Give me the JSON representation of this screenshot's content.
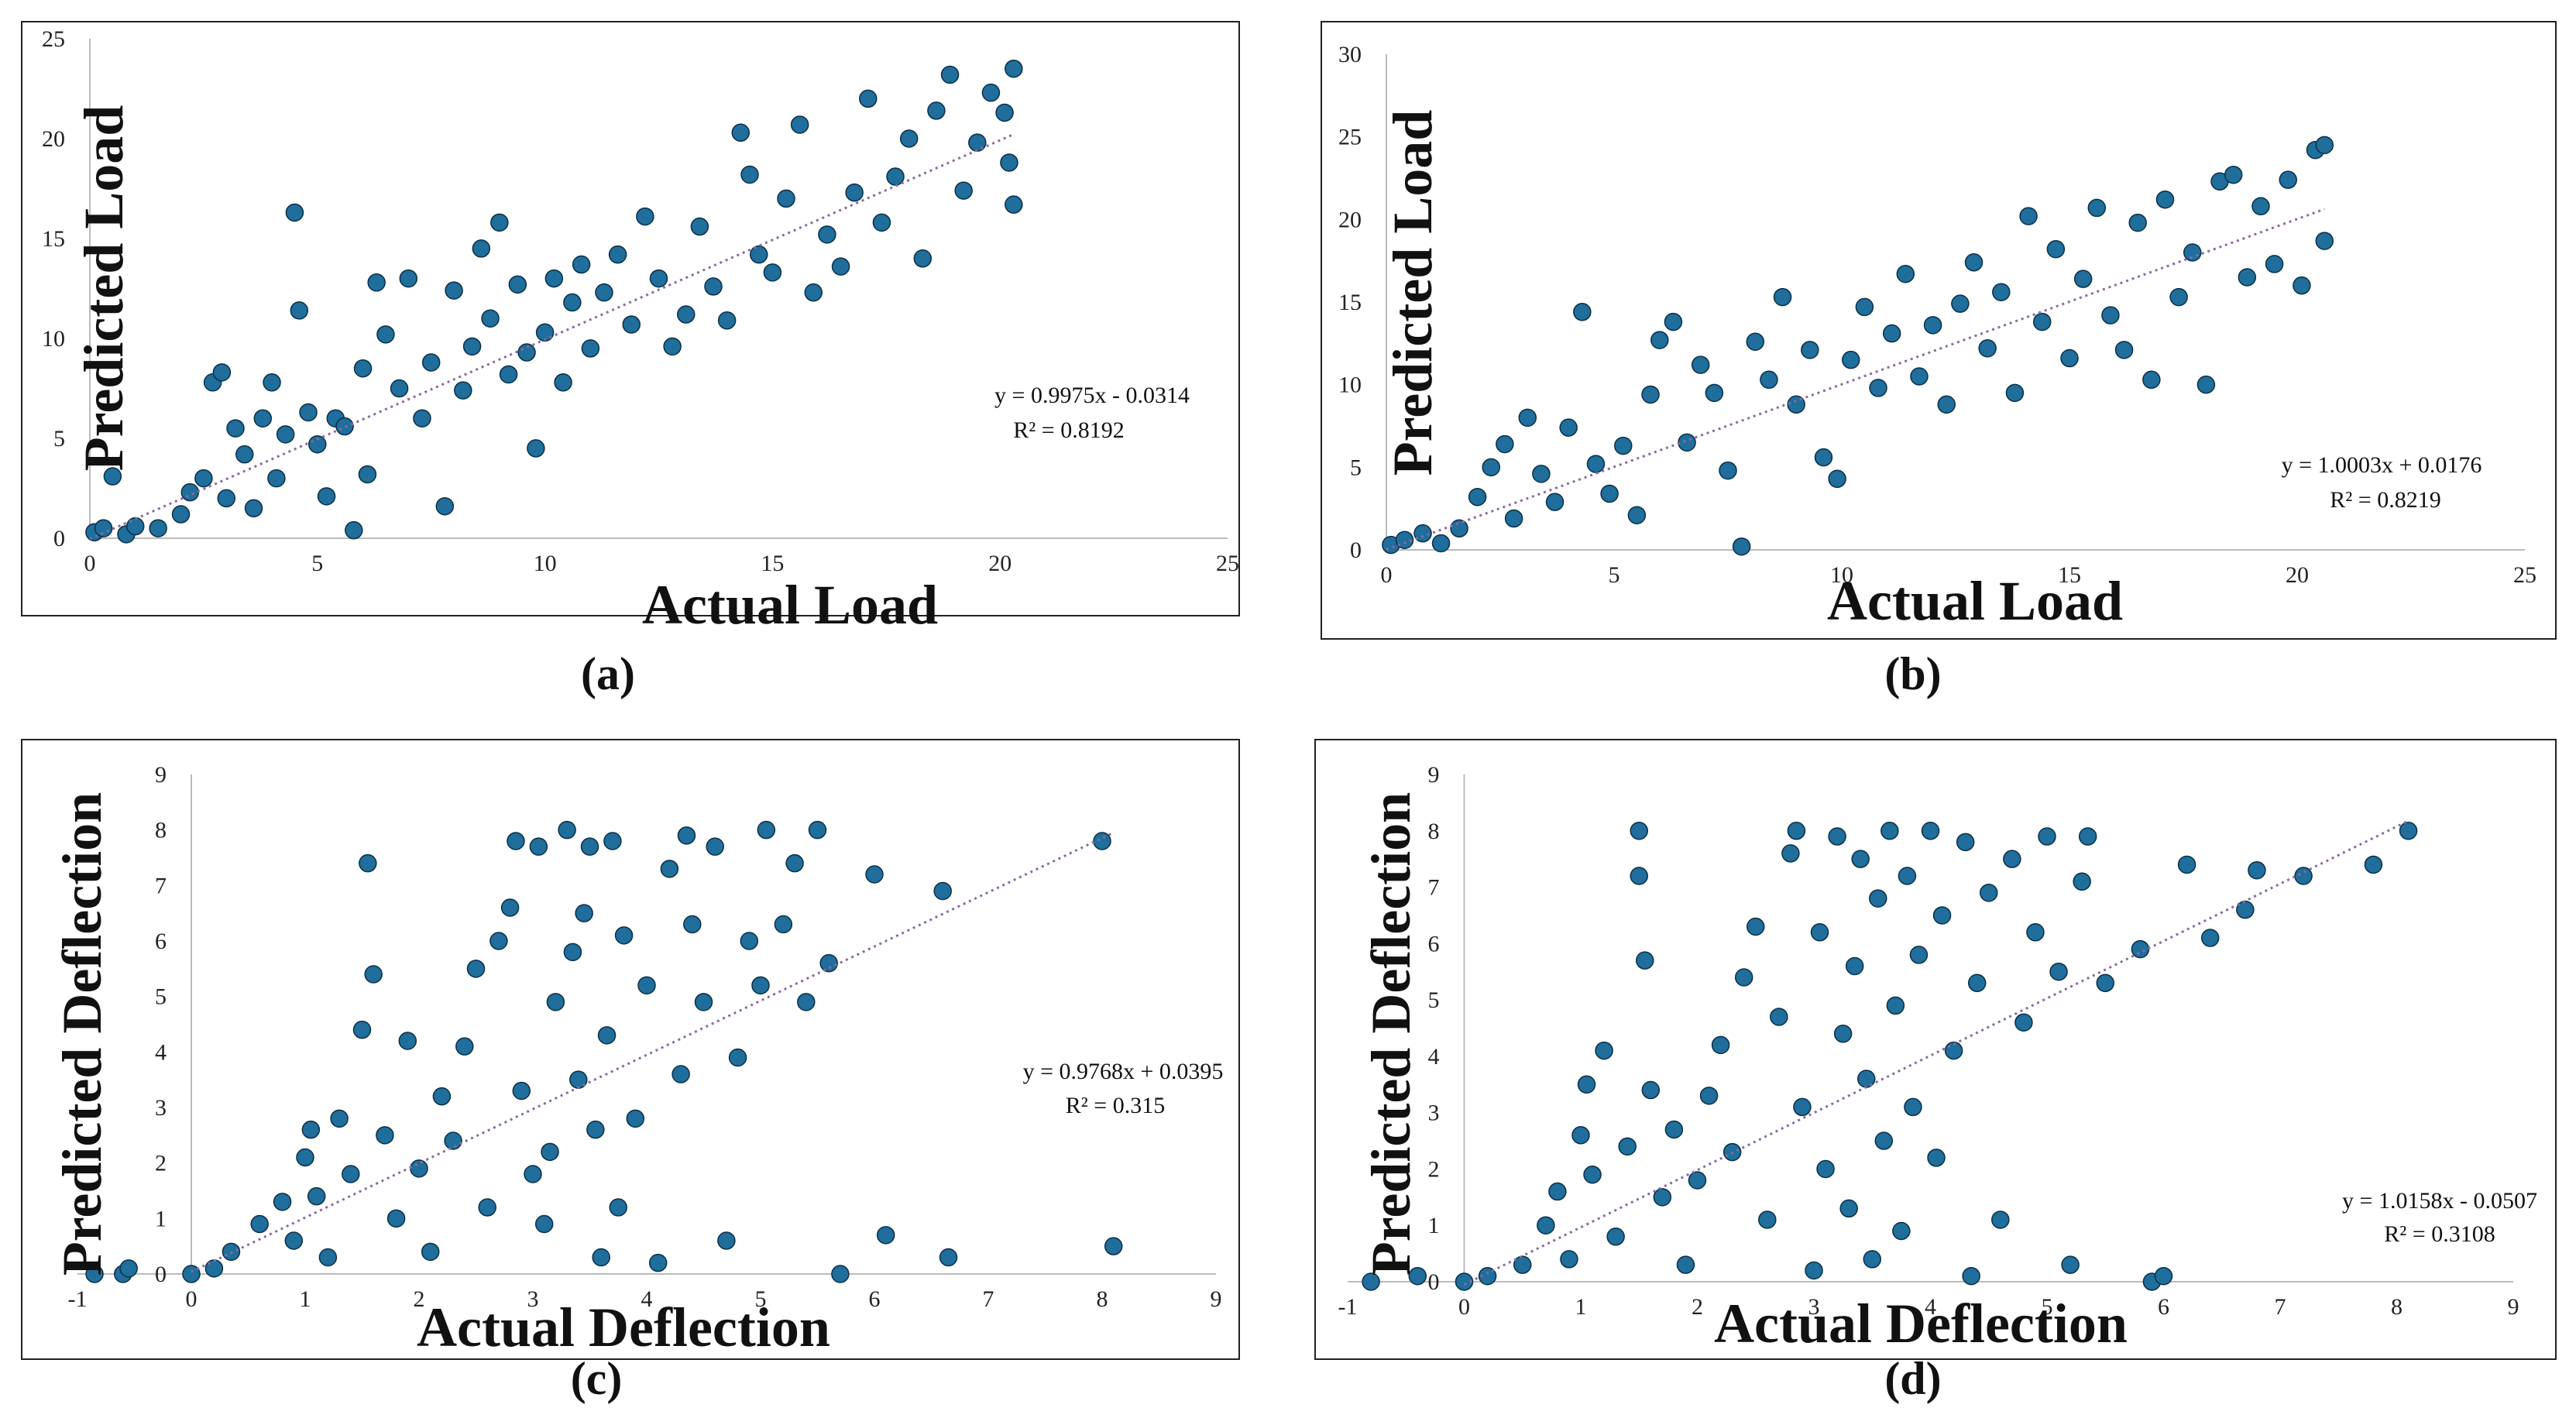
{
  "chart_data": [
    {
      "type": "scatter",
      "panel_label": "(a)",
      "xlabel": "Actual Load",
      "ylabel": "Predicted Load",
      "xlim": [
        0,
        25
      ],
      "ylim": [
        0,
        25
      ],
      "xticks": [
        0,
        5,
        10,
        15,
        20,
        25
      ],
      "yticks": [
        0,
        5,
        10,
        15,
        20,
        25
      ],
      "trendline": {
        "slope": 0.9975,
        "intercept": -0.0314,
        "x_range": [
          0,
          20.3
        ]
      },
      "equation": "y = 0.9975x   - 0.0314",
      "r2_text": "R² = 0.8192",
      "r2": 0.8192,
      "marker_color": "#1f6e9c",
      "points": [
        [
          0.1,
          0.3
        ],
        [
          0.3,
          0.5
        ],
        [
          0.5,
          3.1
        ],
        [
          0.8,
          0.2
        ],
        [
          1,
          0.6
        ],
        [
          1.5,
          0.5
        ],
        [
          2,
          1.2
        ],
        [
          2.2,
          2.3
        ],
        [
          2.5,
          3
        ],
        [
          2.7,
          7.8
        ],
        [
          2.9,
          8.3
        ],
        [
          3,
          2
        ],
        [
          3.2,
          5.5
        ],
        [
          3.4,
          4.2
        ],
        [
          3.6,
          1.5
        ],
        [
          3.8,
          6
        ],
        [
          4,
          7.8
        ],
        [
          4.1,
          3
        ],
        [
          4.3,
          5.2
        ],
        [
          4.5,
          16.3
        ],
        [
          4.6,
          11.4
        ],
        [
          4.8,
          6.3
        ],
        [
          5,
          4.7
        ],
        [
          5.2,
          2.1
        ],
        [
          5.4,
          6
        ],
        [
          5.6,
          5.6
        ],
        [
          5.8,
          0.4
        ],
        [
          6,
          8.5
        ],
        [
          6.1,
          3.2
        ],
        [
          6.3,
          12.8
        ],
        [
          6.5,
          10.2
        ],
        [
          6.8,
          7.5
        ],
        [
          7,
          13
        ],
        [
          7.3,
          6
        ],
        [
          7.5,
          8.8
        ],
        [
          7.8,
          1.6
        ],
        [
          8,
          12.4
        ],
        [
          8.2,
          7.4
        ],
        [
          8.4,
          9.6
        ],
        [
          8.6,
          14.5
        ],
        [
          8.8,
          11
        ],
        [
          9,
          15.8
        ],
        [
          9.2,
          8.2
        ],
        [
          9.4,
          12.7
        ],
        [
          9.6,
          9.3
        ],
        [
          9.8,
          4.5
        ],
        [
          10,
          10.3
        ],
        [
          10.2,
          13
        ],
        [
          10.4,
          7.8
        ],
        [
          10.6,
          11.8
        ],
        [
          10.8,
          13.7
        ],
        [
          11,
          9.5
        ],
        [
          11.3,
          12.3
        ],
        [
          11.6,
          14.2
        ],
        [
          11.9,
          10.7
        ],
        [
          12.2,
          16.1
        ],
        [
          12.5,
          13
        ],
        [
          12.8,
          9.6
        ],
        [
          13.1,
          11.2
        ],
        [
          13.4,
          15.6
        ],
        [
          13.7,
          12.6
        ],
        [
          14,
          10.9
        ],
        [
          14.3,
          20.3
        ],
        [
          14.5,
          18.2
        ],
        [
          14.7,
          14.2
        ],
        [
          15,
          13.3
        ],
        [
          15.3,
          17
        ],
        [
          15.6,
          20.7
        ],
        [
          15.9,
          12.3
        ],
        [
          16.2,
          15.2
        ],
        [
          16.5,
          13.6
        ],
        [
          16.8,
          17.3
        ],
        [
          17.1,
          22
        ],
        [
          17.4,
          15.8
        ],
        [
          17.7,
          18.1
        ],
        [
          18,
          20
        ],
        [
          18.3,
          14
        ],
        [
          18.6,
          21.4
        ],
        [
          18.9,
          23.2
        ],
        [
          19.2,
          17.4
        ],
        [
          19.5,
          19.8
        ],
        [
          19.8,
          22.3
        ],
        [
          20.1,
          21.3
        ],
        [
          20.3,
          23.5
        ],
        [
          20.3,
          16.7
        ],
        [
          20.2,
          18.8
        ]
      ]
    },
    {
      "type": "scatter",
      "panel_label": "(b)",
      "xlabel": "Actual Load",
      "ylabel": "Predicted Load",
      "xlim": [
        0,
        25
      ],
      "ylim": [
        0,
        30
      ],
      "xticks": [
        0,
        5,
        10,
        15,
        20,
        25
      ],
      "yticks": [
        0,
        5,
        10,
        15,
        20,
        25,
        30
      ],
      "trendline": {
        "slope": 1.0003,
        "intercept": 0.0176,
        "x_range": [
          0,
          20.6
        ]
      },
      "equation": "y = 1.0003x   + 0.0176",
      "r2_text": "R² = 0.8219",
      "r2": 0.8219,
      "marker_color": "#1f6e9c",
      "points": [
        [
          0.1,
          0.3
        ],
        [
          0.4,
          0.6
        ],
        [
          0.8,
          1
        ],
        [
          1.2,
          0.4
        ],
        [
          1.6,
          1.3
        ],
        [
          2,
          3.2
        ],
        [
          2.3,
          5
        ],
        [
          2.6,
          6.4
        ],
        [
          2.8,
          1.9
        ],
        [
          3.1,
          8
        ],
        [
          3.4,
          4.6
        ],
        [
          3.7,
          2.9
        ],
        [
          4,
          7.4
        ],
        [
          4.3,
          14.4
        ],
        [
          4.6,
          5.2
        ],
        [
          4.9,
          3.4
        ],
        [
          5.2,
          6.3
        ],
        [
          5.5,
          2.1
        ],
        [
          5.8,
          9.4
        ],
        [
          6,
          12.7
        ],
        [
          6.3,
          13.8
        ],
        [
          6.6,
          6.5
        ],
        [
          6.9,
          11.2
        ],
        [
          7.2,
          9.5
        ],
        [
          7.5,
          4.8
        ],
        [
          7.8,
          0.2
        ],
        [
          8.1,
          12.6
        ],
        [
          8.4,
          10.3
        ],
        [
          8.7,
          15.3
        ],
        [
          9,
          8.8
        ],
        [
          9.3,
          12.1
        ],
        [
          9.6,
          5.6
        ],
        [
          9.9,
          4.3
        ],
        [
          10.2,
          11.5
        ],
        [
          10.5,
          14.7
        ],
        [
          10.8,
          9.8
        ],
        [
          11.1,
          13.1
        ],
        [
          11.4,
          16.7
        ],
        [
          11.7,
          10.5
        ],
        [
          12,
          13.6
        ],
        [
          12.3,
          8.8
        ],
        [
          12.6,
          14.9
        ],
        [
          12.9,
          17.4
        ],
        [
          13.2,
          12.2
        ],
        [
          13.5,
          15.6
        ],
        [
          13.8,
          9.5
        ],
        [
          14.1,
          20.2
        ],
        [
          14.4,
          13.8
        ],
        [
          14.7,
          18.2
        ],
        [
          15,
          11.6
        ],
        [
          15.3,
          16.4
        ],
        [
          15.6,
          20.7
        ],
        [
          15.9,
          14.2
        ],
        [
          16.2,
          12.1
        ],
        [
          16.5,
          19.8
        ],
        [
          16.8,
          10.3
        ],
        [
          17.1,
          21.2
        ],
        [
          17.4,
          15.3
        ],
        [
          17.7,
          18
        ],
        [
          18,
          10
        ],
        [
          18.3,
          22.3
        ],
        [
          18.6,
          22.7
        ],
        [
          18.9,
          16.5
        ],
        [
          19.2,
          20.8
        ],
        [
          19.5,
          17.3
        ],
        [
          19.8,
          22.4
        ],
        [
          20.1,
          16
        ],
        [
          20.4,
          24.2
        ],
        [
          20.6,
          18.7
        ],
        [
          20.6,
          24.5
        ]
      ]
    },
    {
      "type": "scatter",
      "panel_label": "(c)",
      "xlabel": "Actual Deflection",
      "ylabel": "Predicted Deflection",
      "xlim": [
        -1,
        9
      ],
      "ylim": [
        0,
        9
      ],
      "xticks": [
        -1,
        0,
        1,
        2,
        3,
        4,
        5,
        6,
        7,
        8,
        9
      ],
      "yticks": [
        0,
        1,
        2,
        3,
        4,
        5,
        6,
        7,
        8,
        9
      ],
      "trendline": {
        "slope": 0.9768,
        "intercept": 0.0395,
        "x_range": [
          0,
          8.1
        ]
      },
      "equation": "y = 0.9768x   + 0.0395",
      "r2_text": "R² = 0.315",
      "r2": 0.315,
      "marker_color": "#1f6e9c",
      "points": [
        [
          -0.85,
          0
        ],
        [
          -0.6,
          0
        ],
        [
          -0.55,
          0.1
        ],
        [
          0,
          0
        ],
        [
          0.2,
          0.1
        ],
        [
          0.35,
          0.4
        ],
        [
          0.6,
          0.9
        ],
        [
          0.8,
          1.3
        ],
        [
          0.9,
          0.6
        ],
        [
          1,
          2.1
        ],
        [
          1.05,
          2.6
        ],
        [
          1.1,
          1.4
        ],
        [
          1.2,
          0.3
        ],
        [
          1.3,
          2.8
        ],
        [
          1.4,
          1.8
        ],
        [
          1.5,
          4.4
        ],
        [
          1.55,
          7.4
        ],
        [
          1.6,
          5.4
        ],
        [
          1.7,
          2.5
        ],
        [
          1.8,
          1
        ],
        [
          1.9,
          4.2
        ],
        [
          2,
          1.9
        ],
        [
          2.1,
          0.4
        ],
        [
          2.2,
          3.2
        ],
        [
          2.3,
          2.4
        ],
        [
          2.4,
          4.1
        ],
        [
          2.5,
          5.5
        ],
        [
          2.6,
          1.2
        ],
        [
          2.7,
          6
        ],
        [
          2.8,
          6.6
        ],
        [
          2.85,
          7.8
        ],
        [
          2.9,
          3.3
        ],
        [
          3,
          1.8
        ],
        [
          3.05,
          7.7
        ],
        [
          3.1,
          0.9
        ],
        [
          3.15,
          2.2
        ],
        [
          3.2,
          4.9
        ],
        [
          3.3,
          8
        ],
        [
          3.35,
          5.8
        ],
        [
          3.4,
          3.5
        ],
        [
          3.45,
          6.5
        ],
        [
          3.5,
          7.7
        ],
        [
          3.55,
          2.6
        ],
        [
          3.6,
          0.3
        ],
        [
          3.65,
          4.3
        ],
        [
          3.7,
          7.8
        ],
        [
          3.75,
          1.2
        ],
        [
          3.8,
          6.1
        ],
        [
          3.9,
          2.8
        ],
        [
          4,
          5.2
        ],
        [
          4.1,
          0.2
        ],
        [
          4.2,
          7.3
        ],
        [
          4.3,
          3.6
        ],
        [
          4.35,
          7.9
        ],
        [
          4.4,
          6.3
        ],
        [
          4.5,
          4.9
        ],
        [
          4.6,
          7.7
        ],
        [
          4.7,
          0.6
        ],
        [
          4.8,
          3.9
        ],
        [
          4.9,
          6
        ],
        [
          5,
          5.2
        ],
        [
          5.05,
          8
        ],
        [
          5.2,
          6.3
        ],
        [
          5.3,
          7.4
        ],
        [
          5.4,
          4.9
        ],
        [
          5.5,
          8
        ],
        [
          5.6,
          5.6
        ],
        [
          5.7,
          0
        ],
        [
          6,
          7.2
        ],
        [
          6.1,
          0.7
        ],
        [
          6.6,
          6.9
        ],
        [
          6.65,
          0.3
        ],
        [
          8,
          7.8
        ],
        [
          8.1,
          0.5
        ]
      ]
    },
    {
      "type": "scatter",
      "panel_label": "(d)",
      "xlabel": "Actual Deflection",
      "ylabel": "Predicted Deflection",
      "xlim": [
        -1,
        9
      ],
      "ylim": [
        0,
        9
      ],
      "xticks": [
        -1,
        0,
        1,
        2,
        3,
        4,
        5,
        6,
        7,
        8,
        9
      ],
      "yticks": [
        0,
        1,
        2,
        3,
        4,
        5,
        6,
        7,
        8,
        9
      ],
      "trendline": {
        "slope": 1.0158,
        "intercept": -0.0507,
        "x_range": [
          0,
          8.1
        ]
      },
      "equation": "y = 1.0158x   - 0.0507",
      "r2_text": "R² = 0.3108",
      "r2": 0.3108,
      "marker_color": "#1f6e9c",
      "points": [
        [
          -0.8,
          0
        ],
        [
          -0.4,
          0.1
        ],
        [
          0,
          0
        ],
        [
          0.2,
          0.1
        ],
        [
          0.5,
          0.3
        ],
        [
          0.7,
          1
        ],
        [
          0.8,
          1.6
        ],
        [
          0.9,
          0.4
        ],
        [
          1,
          2.6
        ],
        [
          1.05,
          3.5
        ],
        [
          1.1,
          1.9
        ],
        [
          1.2,
          4.1
        ],
        [
          1.3,
          0.8
        ],
        [
          1.4,
          2.4
        ],
        [
          1.5,
          8
        ],
        [
          1.5,
          7.2
        ],
        [
          1.55,
          5.7
        ],
        [
          1.6,
          3.4
        ],
        [
          1.7,
          1.5
        ],
        [
          1.8,
          2.7
        ],
        [
          1.9,
          0.3
        ],
        [
          2,
          1.8
        ],
        [
          2.1,
          3.3
        ],
        [
          2.2,
          4.2
        ],
        [
          2.3,
          2.3
        ],
        [
          2.4,
          5.4
        ],
        [
          2.5,
          6.3
        ],
        [
          2.6,
          1.1
        ],
        [
          2.7,
          4.7
        ],
        [
          2.8,
          7.6
        ],
        [
          2.85,
          8
        ],
        [
          2.9,
          3.1
        ],
        [
          3,
          0.2
        ],
        [
          3.05,
          6.2
        ],
        [
          3.1,
          2
        ],
        [
          3.2,
          7.9
        ],
        [
          3.25,
          4.4
        ],
        [
          3.3,
          1.3
        ],
        [
          3.35,
          5.6
        ],
        [
          3.4,
          7.5
        ],
        [
          3.45,
          3.6
        ],
        [
          3.5,
          0.4
        ],
        [
          3.55,
          6.8
        ],
        [
          3.6,
          2.5
        ],
        [
          3.65,
          8
        ],
        [
          3.7,
          4.9
        ],
        [
          3.75,
          0.9
        ],
        [
          3.8,
          7.2
        ],
        [
          3.85,
          3.1
        ],
        [
          3.9,
          5.8
        ],
        [
          4,
          8
        ],
        [
          4.05,
          2.2
        ],
        [
          4.1,
          6.5
        ],
        [
          4.2,
          4.1
        ],
        [
          4.3,
          7.8
        ],
        [
          4.35,
          0.1
        ],
        [
          4.4,
          5.3
        ],
        [
          4.5,
          6.9
        ],
        [
          4.6,
          1.1
        ],
        [
          4.7,
          7.5
        ],
        [
          4.8,
          4.6
        ],
        [
          4.9,
          6.2
        ],
        [
          5,
          7.9
        ],
        [
          5.1,
          5.5
        ],
        [
          5.2,
          0.3
        ],
        [
          5.3,
          7.1
        ],
        [
          5.35,
          7.9
        ],
        [
          5.5,
          5.3
        ],
        [
          5.8,
          5.9
        ],
        [
          5.9,
          0
        ],
        [
          6,
          0.1
        ],
        [
          6.2,
          7.4
        ],
        [
          6.4,
          6.1
        ],
        [
          6.7,
          6.6
        ],
        [
          6.8,
          7.3
        ],
        [
          7.2,
          7.2
        ],
        [
          7.8,
          7.4
        ],
        [
          8.1,
          8
        ]
      ]
    }
  ]
}
